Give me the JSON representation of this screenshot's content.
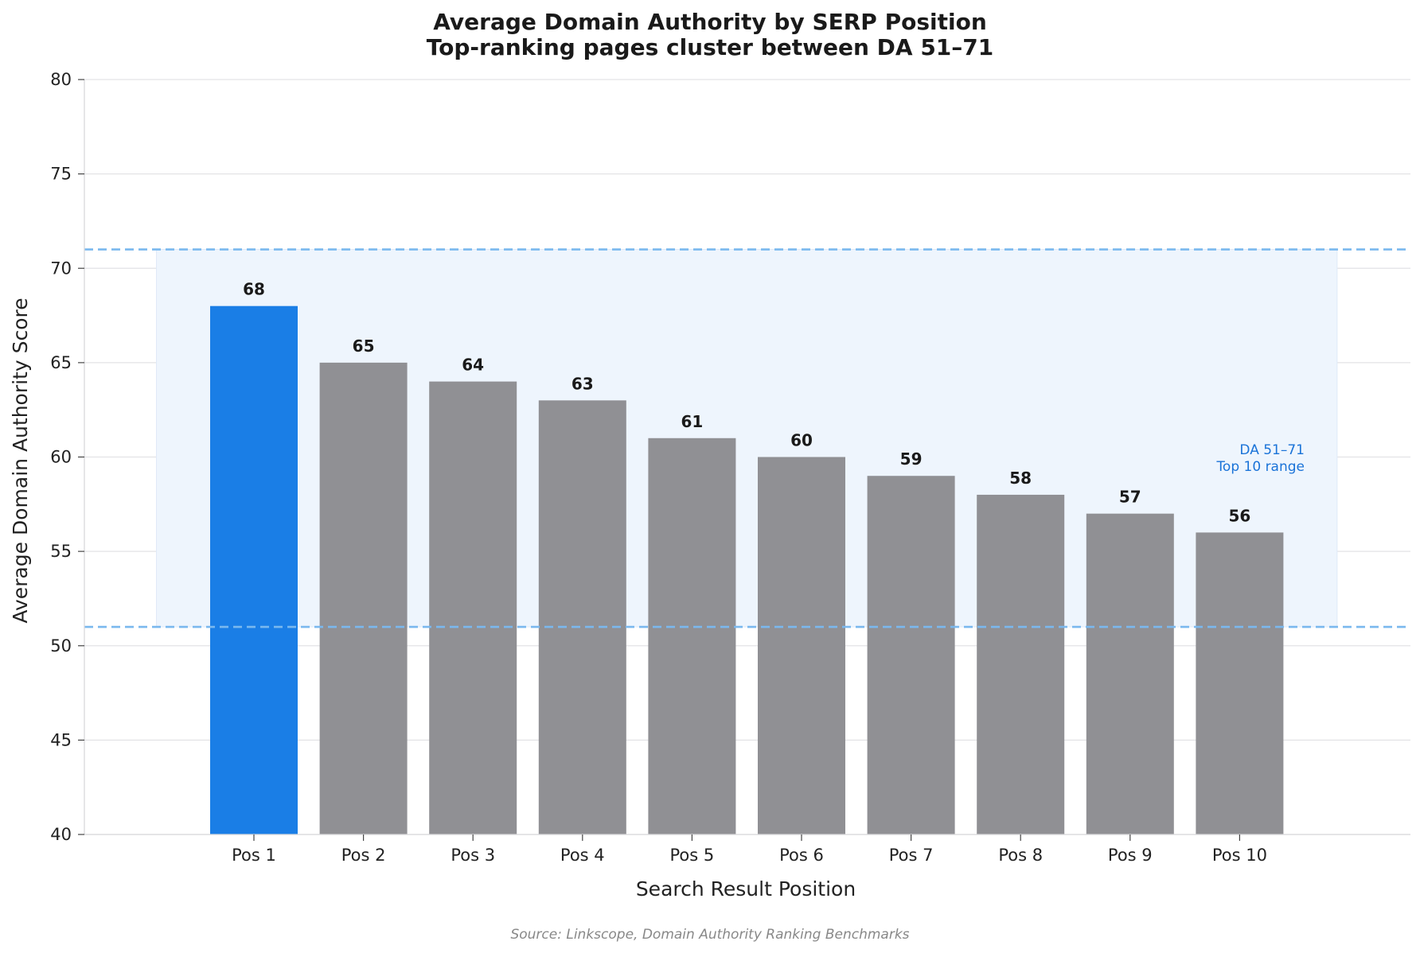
{
  "chart_data": {
    "type": "bar",
    "title": "Average Domain Authority by SERP Position",
    "subtitle": "Top-ranking pages cluster between DA 51–71",
    "xlabel": "Search Result Position",
    "ylabel": "Average Domain Authority Score",
    "categories": [
      "Pos 1",
      "Pos 2",
      "Pos 3",
      "Pos 4",
      "Pos 5",
      "Pos 6",
      "Pos 7",
      "Pos 8",
      "Pos 9",
      "Pos 10"
    ],
    "values": [
      68,
      65,
      64,
      63,
      61,
      60,
      59,
      58,
      57,
      56
    ],
    "ylim": [
      40,
      80
    ],
    "yticks": [
      40,
      45,
      50,
      55,
      60,
      65,
      70,
      75,
      80
    ],
    "grid": "horizontal",
    "highlight_index": 0,
    "band": {
      "low": 51,
      "high": 71,
      "label_line1": "DA 51–71",
      "label_line2": "Top 10 range"
    },
    "source": "Source: Linkscope, Domain Authority Ranking Benchmarks",
    "colors": {
      "highlight_bar": "#1a7ee6",
      "bar": "#909094",
      "band_fill": "#eef5fd",
      "band_line": "#7ab8ee",
      "band_text": "#1a73d8",
      "grid": "#e3e3e6"
    }
  }
}
